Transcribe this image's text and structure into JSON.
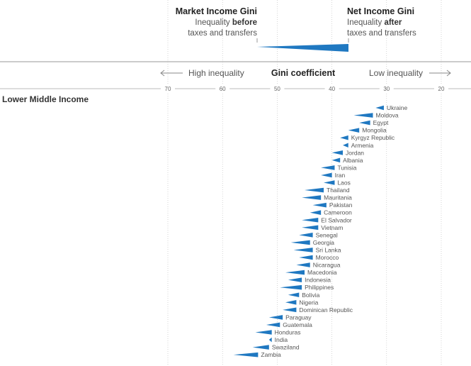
{
  "chart_data": {
    "type": "bar",
    "legend": {
      "market_title": "Market Income Gini",
      "market_line1": "Inequality ",
      "market_line1_bold": "before",
      "market_line2": "taxes and transfers",
      "net_title": "Net Income Gini",
      "net_line1": "Inequality ",
      "net_line1_bold": "after",
      "net_line2": "taxes and transfers"
    },
    "axis": {
      "title": "Gini coefficient",
      "left_label": "High inequality",
      "right_label": "Low inequality",
      "ticks": [
        70,
        60,
        50,
        40,
        30,
        20
      ],
      "xlim": [
        75,
        15
      ],
      "direction": "reversed"
    },
    "group_title": "Lower Middle Income",
    "series": [
      {
        "country": "Ukraine",
        "market": 32,
        "net": 30.5
      },
      {
        "country": "Moldova",
        "market": 36,
        "net": 32.5
      },
      {
        "country": "Egypt",
        "market": 35,
        "net": 33
      },
      {
        "country": "Mongolia",
        "market": 37,
        "net": 35
      },
      {
        "country": "Kyrgyz Republic",
        "market": 38.5,
        "net": 37
      },
      {
        "country": "Armenia",
        "market": 38,
        "net": 37
      },
      {
        "country": "Jordan",
        "market": 40,
        "net": 38
      },
      {
        "country": "Albania",
        "market": 40,
        "net": 38.5
      },
      {
        "country": "Tunisia",
        "market": 42,
        "net": 39.5
      },
      {
        "country": "Iran",
        "market": 42,
        "net": 40
      },
      {
        "country": "Laos",
        "market": 41.5,
        "net": 39.5
      },
      {
        "country": "Thailand",
        "market": 45,
        "net": 41.5
      },
      {
        "country": "Mauritania",
        "market": 45.5,
        "net": 42
      },
      {
        "country": "Pakistan",
        "market": 43.5,
        "net": 41
      },
      {
        "country": "Cameroon",
        "market": 44,
        "net": 42
      },
      {
        "country": "El Salvador",
        "market": 45.5,
        "net": 42.5
      },
      {
        "country": "Vietnam",
        "market": 45.5,
        "net": 42.5
      },
      {
        "country": "Senegal",
        "market": 46,
        "net": 43.5
      },
      {
        "country": "Georgia",
        "market": 47.5,
        "net": 44
      },
      {
        "country": "Sri Lanka",
        "market": 47,
        "net": 43.5
      },
      {
        "country": "Morocco",
        "market": 46,
        "net": 43.5
      },
      {
        "country": "Nicaragua",
        "market": 46.5,
        "net": 44
      },
      {
        "country": "Macedonia",
        "market": 48.5,
        "net": 45
      },
      {
        "country": "Indonesia",
        "market": 48,
        "net": 45.5
      },
      {
        "country": "Philippines",
        "market": 49.5,
        "net": 45.5
      },
      {
        "country": "Bolivia",
        "market": 48,
        "net": 46
      },
      {
        "country": "Nigeria",
        "market": 48.5,
        "net": 46.5
      },
      {
        "country": "Dominican Republic",
        "market": 49,
        "net": 46.5
      },
      {
        "country": "Paraguay",
        "market": 51.5,
        "net": 49
      },
      {
        "country": "Guatemala",
        "market": 52,
        "net": 49.5
      },
      {
        "country": "Honduras",
        "market": 54,
        "net": 51
      },
      {
        "country": "India",
        "market": 51.5,
        "net": 51
      },
      {
        "country": "Swaziland",
        "market": 54.5,
        "net": 51.5
      },
      {
        "country": "Zambia",
        "market": 58,
        "net": 53.5
      }
    ],
    "colors": {
      "bar": "#1f78c1",
      "grid": "#bbbbbb",
      "axis": "#888888",
      "text": "#555555",
      "title_text": "#222222"
    },
    "grid": "vertical-dotted"
  }
}
